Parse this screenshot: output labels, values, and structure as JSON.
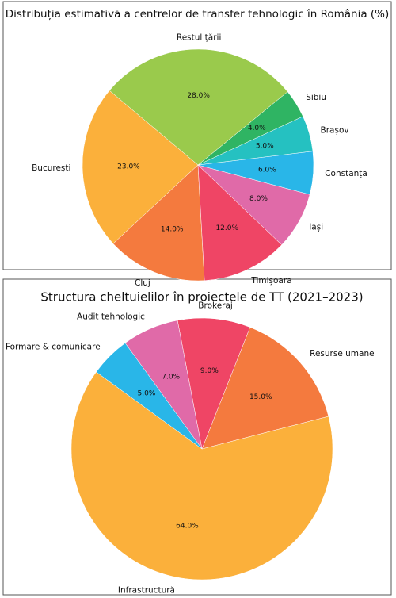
{
  "chart_data": [
    {
      "type": "pie",
      "title": "Distribuția estimativă a centrelor de transfer tehnologic în România (%)",
      "categories": [
        "București",
        "Cluj",
        "Timișoara",
        "Iași",
        "Constanța",
        "Brașov",
        "Sibiu",
        "Restul țării"
      ],
      "values": [
        23,
        14,
        12,
        8,
        6,
        5,
        4,
        28
      ],
      "value_labels": [
        "23.0%",
        "14.0%",
        "12.0%",
        "8.0%",
        "6.0%",
        "5.0%",
        "4.0%",
        "28.0%"
      ],
      "colors": [
        "#fbb03b",
        "#f47a3e",
        "#ef4565",
        "#e06aa8",
        "#29b6e8",
        "#25c1c1",
        "#2fb463",
        "#9aca4c"
      ]
    },
    {
      "type": "pie",
      "title": "Structura cheltuielilor în proiectele de TT (2021–2023)",
      "categories": [
        "Infrastructură",
        "Resurse umane",
        "Brokeraj",
        "Audit tehnologic",
        "Formare & comunicare"
      ],
      "values": [
        64,
        15,
        9,
        7,
        5
      ],
      "value_labels": [
        "64.0%",
        "15.0%",
        "9.0%",
        "7.0%",
        "5.0%"
      ],
      "colors": [
        "#fbb03b",
        "#f47a3e",
        "#ef4565",
        "#e06aa8",
        "#29b6e8"
      ]
    }
  ]
}
